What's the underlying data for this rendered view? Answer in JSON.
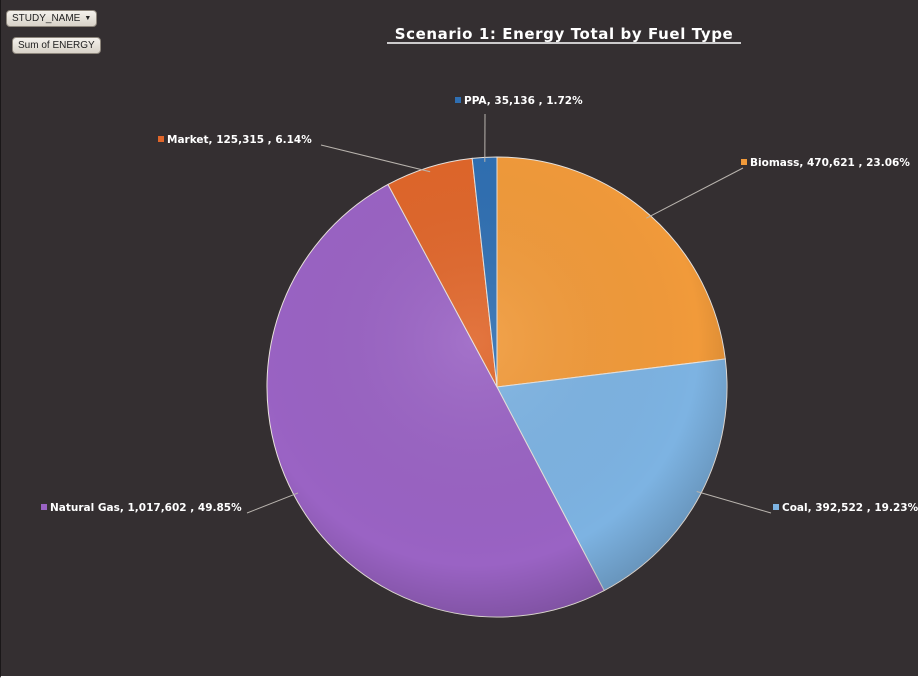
{
  "pivot": {
    "field_button": "STUDY_NAME",
    "value_button": "Sum of ENERGY"
  },
  "chart_data": {
    "type": "pie",
    "title": "Scenario 1:  Energy Total by Fuel Type",
    "slices": [
      {
        "name": "Biomass",
        "value": 470621,
        "percent": 23.06,
        "label": "Biomass,  470,621 , 23.06%",
        "color": "#f19a3a"
      },
      {
        "name": "Coal",
        "value": 392522,
        "percent": 19.23,
        "label": "Coal,  392,522 , 19.23%",
        "color": "#7db3e2"
      },
      {
        "name": "Natural Gas",
        "value": 1017602,
        "percent": 49.85,
        "label": "Natural Gas,  1,017,602 , 49.85%",
        "color": "#9a63c4"
      },
      {
        "name": "Market",
        "value": 125315,
        "percent": 6.14,
        "label": "Market,  125,315 , 6.14%",
        "color": "#e0662a"
      },
      {
        "name": "PPA",
        "value": 35136,
        "percent": 1.72,
        "label": "PPA,  35,136 , 1.72%",
        "color": "#2f6fb2"
      }
    ],
    "legend": "none"
  }
}
